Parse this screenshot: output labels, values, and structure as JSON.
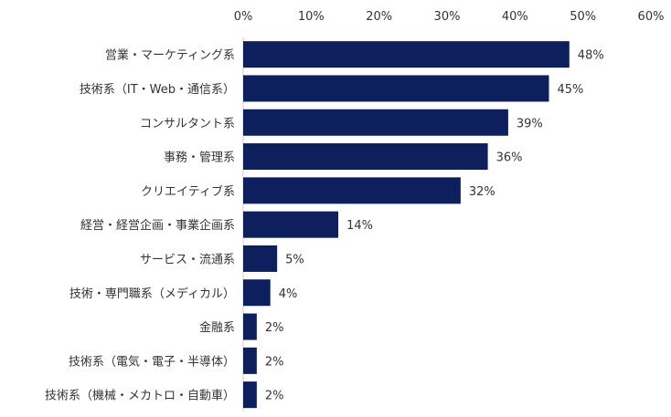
{
  "chart_data": {
    "type": "bar",
    "orientation": "horizontal",
    "categories": [
      "営業・マーケティング系",
      "技術系（IT・Web・通信系）",
      "コンサルタント系",
      "事務・管理系",
      "クリエイティブ系",
      "経営・経営企画・事業企画系",
      "サービス・流通系",
      "技術・専門職系（メディカル）",
      "金融系",
      "技術系（電気・電子・半導体）",
      "技術系（機械・メカトロ・自動車）"
    ],
    "values": [
      48,
      45,
      39,
      36,
      32,
      14,
      5,
      4,
      2,
      2,
      2
    ],
    "value_labels": [
      "48%",
      "45%",
      "39%",
      "36%",
      "32%",
      "14%",
      "5%",
      "4%",
      "2%",
      "2%",
      "2%"
    ],
    "x_ticks": [
      0,
      10,
      20,
      30,
      40,
      50,
      60
    ],
    "x_tick_labels": [
      "0%",
      "10%",
      "20%",
      "30%",
      "40%",
      "50%",
      "60%"
    ],
    "xlim": [
      0,
      60
    ],
    "axis_position": "top",
    "grid": false,
    "legend": "none",
    "bar_color": "#0d1f5c"
  }
}
